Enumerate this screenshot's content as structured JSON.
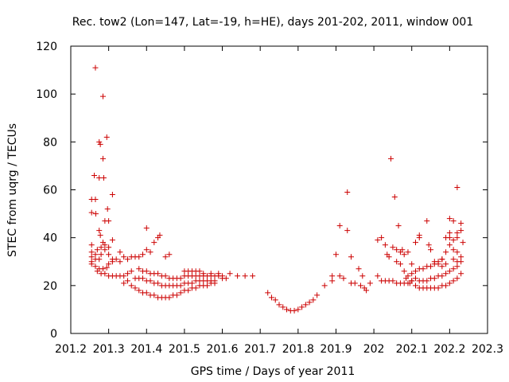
{
  "chart_data": {
    "type": "scatter",
    "title": "Rec. tow2 (Lon=147, Lat=-19, h=HE), days 201-202, 2011, window 001",
    "xlabel": "GPS time / Days of year 2011",
    "ylabel": "STEC from uqrg / TECUs",
    "xlim": [
      201.2,
      202.3
    ],
    "ylim": [
      0,
      120
    ],
    "xticks": [
      "201.2",
      "201.3",
      "201.4",
      "201.5",
      "201.6",
      "201.7",
      "201.8",
      "201.9",
      "202",
      "202.1",
      "202.2",
      "202.3"
    ],
    "yticks": [
      "0",
      "20",
      "40",
      "60",
      "80",
      "100",
      "120"
    ],
    "grid": false,
    "marker": "+",
    "color": "#cc0000",
    "points": [
      [
        201.265,
        111
      ],
      [
        201.285,
        99
      ],
      [
        201.295,
        82
      ],
      [
        201.275,
        80
      ],
      [
        201.278,
        79
      ],
      [
        201.285,
        73
      ],
      [
        201.262,
        66
      ],
      [
        201.275,
        65
      ],
      [
        201.287,
        65
      ],
      [
        201.31,
        58
      ],
      [
        201.255,
        56
      ],
      [
        201.265,
        56
      ],
      [
        201.297,
        52
      ],
      [
        201.255,
        50.5
      ],
      [
        201.266,
        50
      ],
      [
        201.29,
        47
      ],
      [
        201.3,
        47
      ],
      [
        201.275,
        43
      ],
      [
        201.278,
        41
      ],
      [
        201.31,
        39
      ],
      [
        201.285,
        38
      ],
      [
        201.29,
        37
      ],
      [
        201.255,
        37
      ],
      [
        201.27,
        35
      ],
      [
        201.28,
        36
      ],
      [
        201.3,
        36
      ],
      [
        201.29,
        35
      ],
      [
        201.255,
        34
      ],
      [
        201.265,
        33
      ],
      [
        201.28,
        33
      ],
      [
        201.3,
        33
      ],
      [
        201.255,
        32
      ],
      [
        201.265,
        31
      ],
      [
        201.275,
        31
      ],
      [
        201.31,
        31
      ],
      [
        201.32,
        31
      ],
      [
        201.33,
        30
      ],
      [
        201.255,
        30
      ],
      [
        201.3,
        29
      ],
      [
        201.31,
        30
      ],
      [
        201.255,
        29
      ],
      [
        201.265,
        28
      ],
      [
        201.275,
        27
      ],
      [
        201.285,
        27
      ],
      [
        201.295,
        27.5
      ],
      [
        201.27,
        26
      ],
      [
        201.28,
        25
      ],
      [
        201.29,
        25
      ],
      [
        201.3,
        24
      ],
      [
        201.31,
        24
      ],
      [
        201.32,
        24
      ],
      [
        201.33,
        24
      ],
      [
        201.34,
        24
      ],
      [
        201.35,
        25
      ],
      [
        201.36,
        26
      ],
      [
        201.33,
        34
      ],
      [
        201.34,
        32
      ],
      [
        201.35,
        31
      ],
      [
        201.36,
        32
      ],
      [
        201.37,
        32
      ],
      [
        201.38,
        32
      ],
      [
        201.39,
        33
      ],
      [
        201.4,
        35
      ],
      [
        201.41,
        34
      ],
      [
        201.4,
        44
      ],
      [
        201.42,
        38
      ],
      [
        201.43,
        40
      ],
      [
        201.435,
        41
      ],
      [
        201.45,
        32
      ],
      [
        201.46,
        33
      ],
      [
        201.34,
        21
      ],
      [
        201.35,
        22
      ],
      [
        201.36,
        20
      ],
      [
        201.37,
        19
      ],
      [
        201.38,
        18
      ],
      [
        201.39,
        17
      ],
      [
        201.4,
        17
      ],
      [
        201.41,
        16
      ],
      [
        201.42,
        16
      ],
      [
        201.43,
        15
      ],
      [
        201.44,
        15
      ],
      [
        201.45,
        15
      ],
      [
        201.46,
        15
      ],
      [
        201.47,
        16
      ],
      [
        201.48,
        16
      ],
      [
        201.49,
        17
      ],
      [
        201.5,
        18
      ],
      [
        201.51,
        18
      ],
      [
        201.52,
        19
      ],
      [
        201.53,
        19
      ],
      [
        201.54,
        20
      ],
      [
        201.55,
        20
      ],
      [
        201.56,
        20
      ],
      [
        201.57,
        21
      ],
      [
        201.58,
        21
      ],
      [
        201.37,
        23
      ],
      [
        201.38,
        23
      ],
      [
        201.39,
        23
      ],
      [
        201.4,
        22
      ],
      [
        201.41,
        22
      ],
      [
        201.42,
        21
      ],
      [
        201.43,
        21
      ],
      [
        201.44,
        20
      ],
      [
        201.45,
        20
      ],
      [
        201.46,
        20
      ],
      [
        201.47,
        20
      ],
      [
        201.48,
        20
      ],
      [
        201.49,
        20
      ],
      [
        201.5,
        21
      ],
      [
        201.51,
        21
      ],
      [
        201.52,
        21
      ],
      [
        201.53,
        22
      ],
      [
        201.54,
        22
      ],
      [
        201.55,
        22
      ],
      [
        201.56,
        22
      ],
      [
        201.57,
        22
      ],
      [
        201.58,
        22
      ],
      [
        201.38,
        27
      ],
      [
        201.39,
        26
      ],
      [
        201.4,
        26
      ],
      [
        201.41,
        25
      ],
      [
        201.42,
        25
      ],
      [
        201.43,
        25
      ],
      [
        201.44,
        24
      ],
      [
        201.45,
        24
      ],
      [
        201.46,
        23
      ],
      [
        201.47,
        23
      ],
      [
        201.48,
        23
      ],
      [
        201.49,
        23
      ],
      [
        201.5,
        24
      ],
      [
        201.51,
        24
      ],
      [
        201.52,
        24
      ],
      [
        201.53,
        24
      ],
      [
        201.54,
        24
      ],
      [
        201.55,
        24
      ],
      [
        201.56,
        24
      ],
      [
        201.57,
        24
      ],
      [
        201.58,
        24
      ],
      [
        201.59,
        24
      ],
      [
        201.6,
        24
      ],
      [
        201.62,
        25
      ],
      [
        201.64,
        24
      ],
      [
        201.66,
        24
      ],
      [
        201.68,
        24
      ],
      [
        201.5,
        26
      ],
      [
        201.51,
        26
      ],
      [
        201.52,
        26
      ],
      [
        201.53,
        26
      ],
      [
        201.54,
        26
      ],
      [
        201.55,
        25
      ],
      [
        201.57,
        25
      ],
      [
        201.59,
        25
      ],
      [
        201.6,
        23
      ],
      [
        201.61,
        23
      ],
      [
        201.72,
        17
      ],
      [
        201.73,
        15
      ],
      [
        201.74,
        14
      ],
      [
        201.75,
        12
      ],
      [
        201.76,
        11
      ],
      [
        201.77,
        10
      ],
      [
        201.78,
        9.5
      ],
      [
        201.79,
        9.5
      ],
      [
        201.8,
        10
      ],
      [
        201.81,
        11
      ],
      [
        201.82,
        12
      ],
      [
        201.83,
        13
      ],
      [
        201.84,
        14
      ],
      [
        201.85,
        16
      ],
      [
        201.87,
        20
      ],
      [
        201.89,
        24
      ],
      [
        201.89,
        22
      ],
      [
        201.9,
        33
      ],
      [
        201.91,
        24
      ],
      [
        201.92,
        23
      ],
      [
        201.91,
        45
      ],
      [
        201.93,
        43
      ],
      [
        201.93,
        59
      ],
      [
        201.94,
        32
      ],
      [
        201.94,
        21
      ],
      [
        201.95,
        21
      ],
      [
        201.96,
        27
      ],
      [
        201.965,
        20
      ],
      [
        201.97,
        24
      ],
      [
        201.975,
        19
      ],
      [
        201.98,
        18
      ],
      [
        201.99,
        21
      ],
      [
        202.01,
        39
      ],
      [
        202.02,
        40
      ],
      [
        202.01,
        24
      ],
      [
        202.02,
        22
      ],
      [
        202.03,
        22
      ],
      [
        202.04,
        22
      ],
      [
        202.045,
        73
      ],
      [
        202.05,
        22
      ],
      [
        202.055,
        57
      ],
      [
        202.06,
        21
      ],
      [
        202.065,
        45
      ],
      [
        202.07,
        21
      ],
      [
        202.075,
        35
      ],
      [
        202.08,
        21
      ],
      [
        202.085,
        23
      ],
      [
        202.09,
        21
      ],
      [
        202.095,
        21
      ],
      [
        202.03,
        37
      ],
      [
        202.035,
        33
      ],
      [
        202.04,
        32
      ],
      [
        202.05,
        36
      ],
      [
        202.06,
        35
      ],
      [
        202.07,
        34
      ],
      [
        202.08,
        33
      ],
      [
        202.09,
        34
      ],
      [
        202.06,
        30
      ],
      [
        202.07,
        29
      ],
      [
        202.08,
        26
      ],
      [
        202.09,
        24
      ],
      [
        202.1,
        29
      ],
      [
        202.1,
        22
      ],
      [
        202.11,
        20
      ],
      [
        202.12,
        19
      ],
      [
        202.13,
        19
      ],
      [
        202.14,
        19
      ],
      [
        202.15,
        19
      ],
      [
        202.16,
        19
      ],
      [
        202.17,
        19
      ],
      [
        202.18,
        20
      ],
      [
        202.19,
        20
      ],
      [
        202.2,
        21
      ],
      [
        202.21,
        22
      ],
      [
        202.22,
        23
      ],
      [
        202.23,
        25
      ],
      [
        202.1,
        22
      ],
      [
        202.11,
        23
      ],
      [
        202.12,
        22
      ],
      [
        202.13,
        22
      ],
      [
        202.14,
        22
      ],
      [
        202.15,
        23
      ],
      [
        202.16,
        23
      ],
      [
        202.17,
        24
      ],
      [
        202.18,
        24
      ],
      [
        202.19,
        25
      ],
      [
        202.2,
        26
      ],
      [
        202.21,
        27
      ],
      [
        202.22,
        28
      ],
      [
        202.23,
        30
      ],
      [
        202.11,
        38
      ],
      [
        202.12,
        40
      ],
      [
        202.12,
        41
      ],
      [
        202.14,
        47
      ],
      [
        202.145,
        37
      ],
      [
        202.15,
        35
      ],
      [
        202.16,
        30
      ],
      [
        202.17,
        29
      ],
      [
        202.18,
        28
      ],
      [
        202.18,
        31
      ],
      [
        202.19,
        29
      ],
      [
        202.19,
        40
      ],
      [
        202.2,
        42
      ],
      [
        202.2,
        48
      ],
      [
        202.21,
        47
      ],
      [
        202.22,
        61
      ],
      [
        202.22,
        42
      ],
      [
        202.23,
        46
      ],
      [
        202.23,
        43
      ],
      [
        202.235,
        38
      ],
      [
        202.21,
        35
      ],
      [
        202.22,
        34
      ],
      [
        202.23,
        32
      ],
      [
        202.21,
        31
      ],
      [
        202.22,
        30
      ],
      [
        202.19,
        34
      ],
      [
        202.2,
        37
      ],
      [
        202.2,
        40
      ],
      [
        202.21,
        39
      ],
      [
        202.22,
        40
      ],
      [
        202.1,
        25
      ],
      [
        202.11,
        26
      ],
      [
        202.12,
        27
      ],
      [
        202.13,
        27
      ],
      [
        202.14,
        28
      ],
      [
        202.15,
        28
      ],
      [
        202.16,
        29
      ],
      [
        202.17,
        30
      ],
      [
        202.18,
        31
      ]
    ]
  }
}
